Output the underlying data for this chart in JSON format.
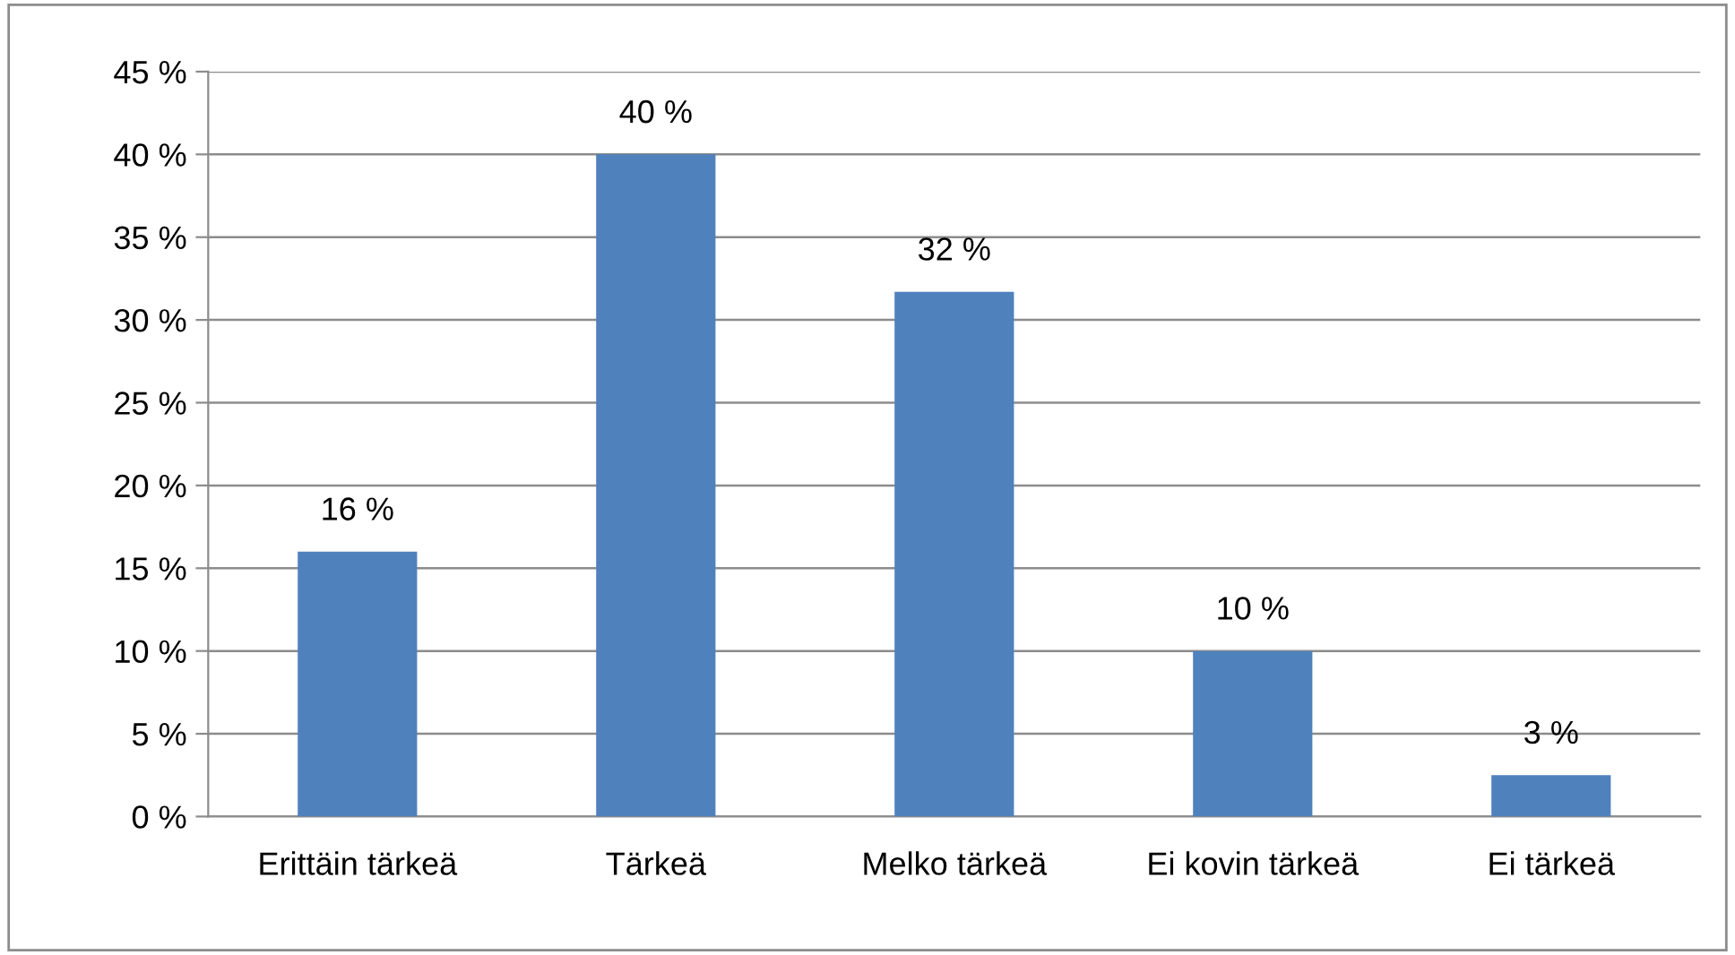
{
  "chart_data": {
    "type": "bar",
    "categories": [
      "Erittäin tärkeä",
      "Tärkeä",
      "Melko tärkeä",
      "Ei kovin tärkeä",
      "Ei tärkeä"
    ],
    "values": [
      16,
      40,
      31.7,
      10,
      2.5
    ],
    "value_labels": [
      "16 %",
      "40 %",
      "32 %",
      "10 %",
      "3 %"
    ],
    "color": "#4f81bd",
    "ylim": [
      0,
      45
    ],
    "yticks": [
      {
        "value": 0,
        "label": "0 %"
      },
      {
        "value": 5,
        "label": "5 %"
      },
      {
        "value": 10,
        "label": "10 %"
      },
      {
        "value": 15,
        "label": "15 %"
      },
      {
        "value": 20,
        "label": "20 %"
      },
      {
        "value": 25,
        "label": "25 %"
      },
      {
        "value": 30,
        "label": "30 %"
      },
      {
        "value": 35,
        "label": "35 %"
      },
      {
        "value": 40,
        "label": "40 %"
      },
      {
        "value": 45,
        "label": "45 %"
      }
    ],
    "grid": "y",
    "legend": false
  }
}
